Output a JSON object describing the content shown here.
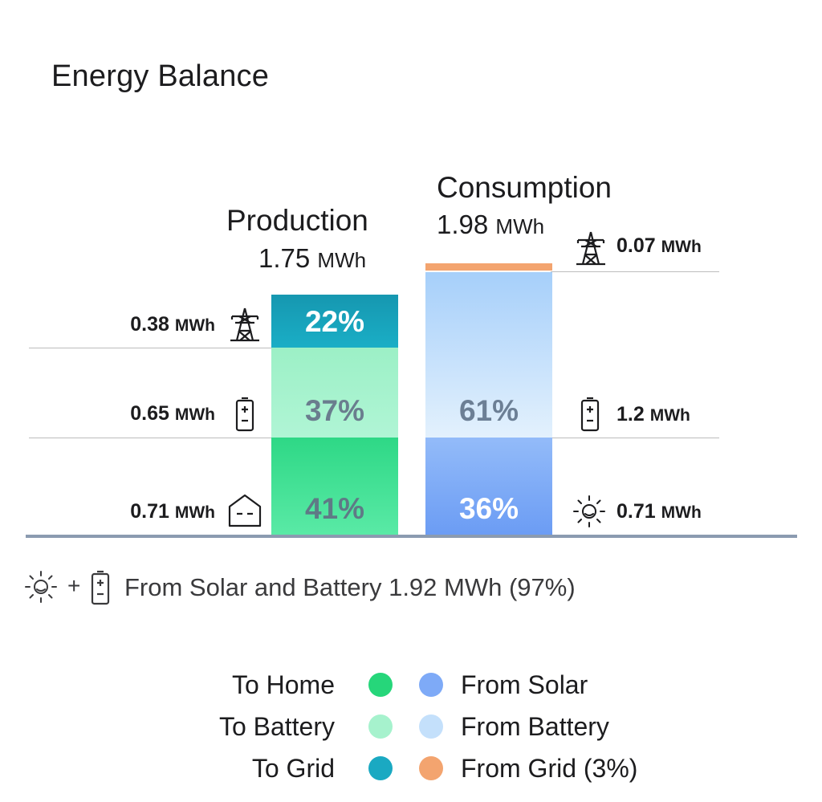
{
  "title": "Energy Balance",
  "production": {
    "label": "Production",
    "total_value": "1.75",
    "total_unit": "MWh",
    "segments": [
      {
        "key": "grid",
        "pct": "22%",
        "value": "0.38",
        "unit": "MWh",
        "icon": "power-pylon-icon",
        "color": "#1aa9c2"
      },
      {
        "key": "battery",
        "pct": "37%",
        "value": "0.65",
        "unit": "MWh",
        "icon": "battery-icon",
        "color": "#a6f2cd"
      },
      {
        "key": "home",
        "pct": "41%",
        "value": "0.71",
        "unit": "MWh",
        "icon": "home-icon",
        "color": "#4ee69a"
      }
    ]
  },
  "consumption": {
    "label": "Consumption",
    "total_value": "1.98",
    "total_unit": "MWh",
    "segments": [
      {
        "key": "grid",
        "pct": "",
        "value": "0.07",
        "unit": "MWh",
        "icon": "power-pylon-icon",
        "color": "#f3a46f"
      },
      {
        "key": "battery",
        "pct": "61%",
        "value": "1.2",
        "unit": "MWh",
        "icon": "battery-icon",
        "color": "#c4e0fb"
      },
      {
        "key": "solar",
        "pct": "36%",
        "value": "0.71",
        "unit": "MWh",
        "icon": "sun-icon",
        "color": "#7eaaf7"
      }
    ]
  },
  "footer": {
    "plus": "+",
    "text": "From Solar and Battery 1.92 MWh (97%)"
  },
  "legend": {
    "left": [
      {
        "label": "To Home",
        "color": "#26d67a"
      },
      {
        "label": "To Battery",
        "color": "#a6f2cd"
      },
      {
        "label": "To Grid",
        "color": "#1aa9c2"
      }
    ],
    "right": [
      {
        "label": "From Solar",
        "color": "#7eaaf7"
      },
      {
        "label": "From Battery",
        "color": "#c4e0fb"
      },
      {
        "label": "From Grid (3%)",
        "color": "#f3a46f"
      }
    ]
  }
}
